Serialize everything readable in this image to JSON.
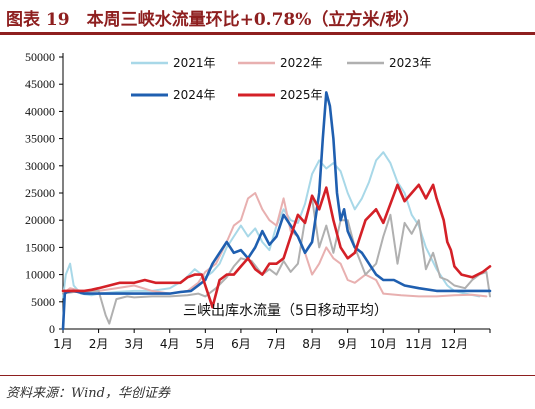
{
  "header": {
    "title": "图表 19　本周三峡水流量环比+0.78%（立方米/秒）"
  },
  "footer": {
    "source": "资料来源：Wind，华创证券"
  },
  "chart_data": {
    "type": "line",
    "annotation": "三峡出库水流量（5日移动平均）",
    "categories": [
      "1月",
      "2月",
      "3月",
      "4月",
      "5月",
      "6月",
      "7月",
      "8月",
      "9月",
      "10月",
      "11月",
      "12月"
    ],
    "ylim": [
      0,
      50000
    ],
    "yticks": [
      0,
      5000,
      10000,
      15000,
      20000,
      25000,
      30000,
      35000,
      40000,
      45000,
      50000
    ],
    "legend_placement": "top",
    "series": [
      {
        "name": "2021年",
        "color": "#a8d8e8",
        "width": 2,
        "x": [
          0,
          0.08,
          0.2,
          0.3,
          0.5,
          0.8,
          1.0,
          1.5,
          2.0,
          2.5,
          3.0,
          3.4,
          3.7,
          4.0,
          4.2,
          4.4,
          4.6,
          4.8,
          5.0,
          5.2,
          5.4,
          5.6,
          5.8,
          6.0,
          6.2,
          6.4,
          6.6,
          6.8,
          7.0,
          7.2,
          7.4,
          7.6,
          7.8,
          8.0,
          8.2,
          8.4,
          8.6,
          8.8,
          9.0,
          9.2,
          9.4,
          9.6,
          9.8,
          10.0,
          10.2,
          10.5,
          10.8,
          11.0,
          11.3,
          11.7
        ],
        "y": [
          5800,
          10000,
          12000,
          8000,
          6500,
          6200,
          6500,
          6800,
          7000,
          7000,
          7500,
          9000,
          11000,
          9500,
          10500,
          12000,
          15000,
          17000,
          19000,
          17000,
          18500,
          16000,
          14500,
          19000,
          22000,
          20000,
          19500,
          23000,
          28500,
          31000,
          29500,
          30500,
          29000,
          25000,
          22000,
          24000,
          27000,
          31000,
          32500,
          30500,
          27000,
          25000,
          21000,
          19000,
          15000,
          11000,
          8000,
          7000,
          6500,
          6000
        ]
      },
      {
        "name": "2022年",
        "color": "#e8b0b0",
        "width": 2,
        "x": [
          0,
          0.2,
          0.5,
          1.0,
          1.5,
          2.0,
          2.5,
          3.0,
          3.5,
          3.8,
          4.0,
          4.3,
          4.6,
          4.8,
          5.0,
          5.2,
          5.4,
          5.6,
          5.8,
          6.0,
          6.2,
          6.4,
          6.6,
          6.8,
          7.0,
          7.2,
          7.4,
          7.6,
          7.8,
          8.0,
          8.2,
          8.5,
          8.8,
          9.0,
          9.5,
          10.0,
          10.5,
          11.0,
          11.5,
          11.9
        ],
        "y": [
          6500,
          7500,
          7000,
          7000,
          7500,
          8000,
          7000,
          6500,
          7000,
          8500,
          10500,
          12000,
          16000,
          19000,
          20000,
          24000,
          25000,
          22000,
          20000,
          19000,
          24000,
          18000,
          17000,
          14000,
          10000,
          12000,
          15000,
          13000,
          12000,
          9000,
          8500,
          10000,
          9000,
          6500,
          6200,
          6000,
          6000,
          6200,
          6300,
          6000
        ]
      },
      {
        "name": "2023年",
        "color": "#b0b0b0",
        "width": 2,
        "x": [
          0,
          0.3,
          0.6,
          0.8,
          1.0,
          1.2,
          1.3,
          1.5,
          1.8,
          2.0,
          2.5,
          3.0,
          3.5,
          3.8,
          4.0,
          4.3,
          4.6,
          4.8,
          5.0,
          5.3,
          5.6,
          5.8,
          6.0,
          6.2,
          6.4,
          6.6,
          6.8,
          7.0,
          7.2,
          7.4,
          7.6,
          7.8,
          8.0,
          8.2,
          8.5,
          8.8,
          9.0,
          9.2,
          9.4,
          9.6,
          9.8,
          10.0,
          10.2,
          10.4,
          10.6,
          10.8,
          11.0,
          11.3,
          11.5,
          11.7,
          11.9,
          12.0
        ],
        "y": [
          6500,
          6800,
          6800,
          7000,
          7000,
          2500,
          1000,
          5500,
          6000,
          5800,
          6000,
          6000,
          6200,
          6500,
          6000,
          7500,
          9500,
          11500,
          13000,
          12500,
          10000,
          11000,
          10000,
          12500,
          10500,
          12000,
          20000,
          24000,
          15000,
          19000,
          14000,
          20000,
          20000,
          15000,
          10000,
          12000,
          17000,
          21000,
          12000,
          19500,
          17500,
          20000,
          11000,
          14000,
          9500,
          9000,
          8000,
          7500,
          9000,
          10000,
          10500,
          6000
        ]
      },
      {
        "name": "2024年",
        "color": "#1f5fb0",
        "width": 2.6,
        "x": [
          0,
          0.05,
          0.1,
          0.3,
          0.6,
          1.0,
          1.5,
          2.0,
          2.5,
          3.0,
          3.3,
          3.6,
          3.8,
          4.0,
          4.2,
          4.4,
          4.6,
          4.8,
          5.0,
          5.2,
          5.4,
          5.6,
          5.8,
          6.0,
          6.2,
          6.4,
          6.6,
          6.8,
          7.0,
          7.2,
          7.3,
          7.4,
          7.5,
          7.6,
          7.7,
          7.8,
          7.9,
          8.0,
          8.2,
          8.4,
          8.6,
          8.8,
          9.0,
          9.3,
          9.6,
          10.0,
          10.5,
          11.0,
          11.5,
          11.8,
          12.0
        ],
        "y": [
          0,
          6500,
          6800,
          7000,
          6500,
          6500,
          6500,
          6500,
          6500,
          6500,
          6800,
          7000,
          8000,
          9000,
          12000,
          14000,
          16000,
          14000,
          14500,
          13000,
          15000,
          18000,
          15500,
          17000,
          21000,
          19000,
          17000,
          14000,
          16000,
          25000,
          35000,
          43500,
          41000,
          35000,
          25000,
          20000,
          22000,
          18000,
          15000,
          14000,
          12000,
          10000,
          9000,
          9000,
          8000,
          7500,
          7000,
          7000,
          7000,
          7000,
          7000
        ]
      },
      {
        "name": "2025年",
        "color": "#d42027",
        "width": 2.6,
        "x": [
          0,
          0.3,
          0.6,
          0.8,
          1.0,
          1.3,
          1.6,
          2.0,
          2.3,
          2.6,
          3.0,
          3.3,
          3.5,
          3.7,
          3.9,
          4.0,
          4.2,
          4.4,
          4.6,
          4.8,
          5.0,
          5.2,
          5.4,
          5.6,
          5.8,
          6.0,
          6.2,
          6.4,
          6.6,
          6.8,
          7.0,
          7.2,
          7.4,
          7.6,
          7.8,
          8.0,
          8.2,
          8.5,
          8.8,
          9.0,
          9.2,
          9.4,
          9.6,
          9.8,
          10.0,
          10.2,
          10.4,
          10.5,
          10.6,
          10.7,
          10.8,
          10.9,
          11.0,
          11.2,
          11.5,
          11.8,
          12.0
        ],
        "y": [
          7000,
          7000,
          7000,
          7200,
          7500,
          8000,
          8500,
          8500,
          9000,
          8500,
          8500,
          8500,
          9500,
          10000,
          10000,
          8000,
          4000,
          9000,
          10000,
          10000,
          11500,
          13000,
          11000,
          10000,
          12000,
          12000,
          13000,
          17000,
          21000,
          19500,
          24500,
          22000,
          26000,
          20000,
          15000,
          13000,
          14000,
          20000,
          22000,
          19500,
          23000,
          26500,
          23500,
          25000,
          26500,
          24000,
          26500,
          24000,
          22000,
          20000,
          16000,
          14500,
          11500,
          10000,
          9500,
          10500,
          11500
        ]
      }
    ]
  }
}
